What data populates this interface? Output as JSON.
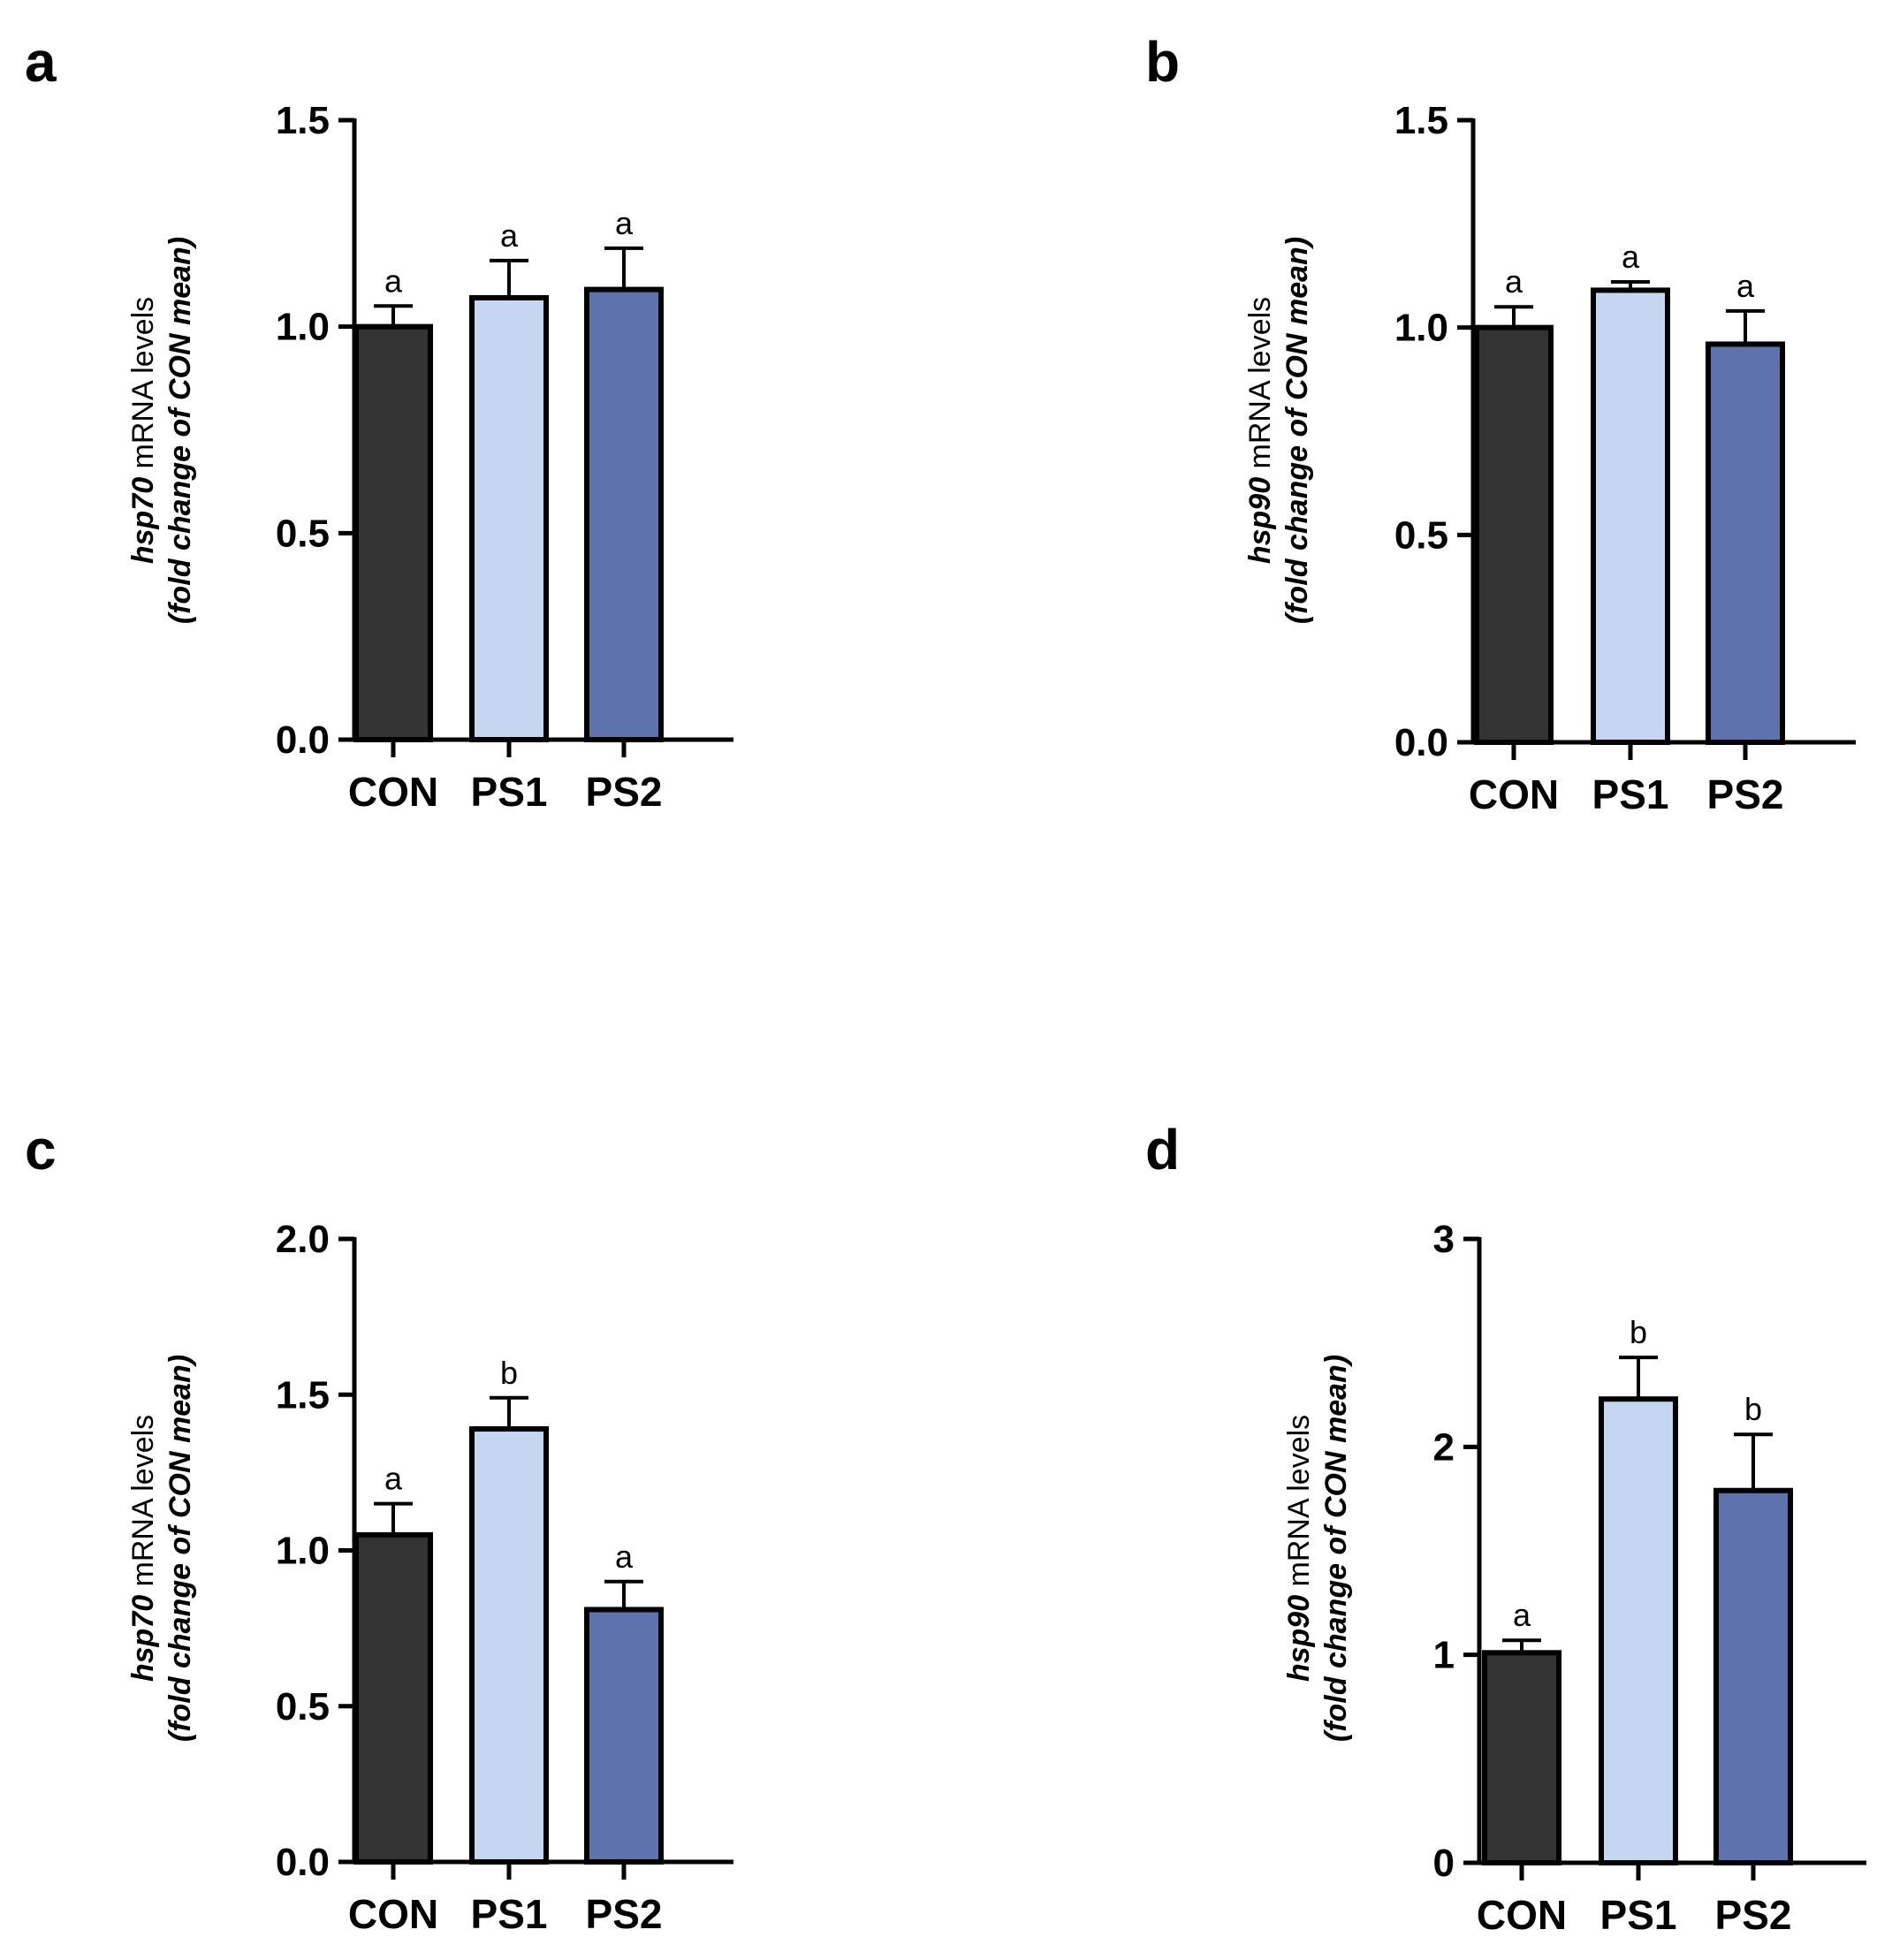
{
  "colors": {
    "CON": "#333333",
    "PS1": "#c5d6f0",
    "PS2": "#5e73ae",
    "stroke": "#000000"
  },
  "chart_data": [
    {
      "panel": "a",
      "type": "bar",
      "categories": [
        "CON",
        "PS1",
        "PS2"
      ],
      "values": [
        1.0,
        1.07,
        1.09
      ],
      "errors": [
        0.05,
        0.09,
        0.1
      ],
      "significance": [
        "a",
        "a",
        "a"
      ],
      "ylim": [
        0,
        1.5
      ],
      "yticks": [
        "0.0",
        "0.5",
        "1.0",
        "1.5"
      ],
      "yticks_values": [
        0,
        0.5,
        1.0,
        1.5
      ],
      "ylabel_gene": "hsp70",
      "ylabel_rest": " mRNA levels",
      "ylabel_line2": "(fold change of CON mean)"
    },
    {
      "panel": "b",
      "type": "bar",
      "categories": [
        "CON",
        "PS1",
        "PS2"
      ],
      "values": [
        1.0,
        1.09,
        0.96
      ],
      "errors": [
        0.05,
        0.02,
        0.08
      ],
      "significance": [
        "a",
        "a",
        "a"
      ],
      "ylim": [
        0,
        1.5
      ],
      "yticks": [
        "0.0",
        "0.5",
        "1.0",
        "1.5"
      ],
      "yticks_values": [
        0,
        0.5,
        1.0,
        1.5
      ],
      "ylabel_gene": "hsp90",
      "ylabel_rest": " mRNA levels",
      "ylabel_line2": "(fold change of CON mean)"
    },
    {
      "panel": "c",
      "type": "bar",
      "categories": [
        "CON",
        "PS1",
        "PS2"
      ],
      "values": [
        1.05,
        1.39,
        0.81
      ],
      "errors": [
        0.1,
        0.1,
        0.09
      ],
      "significance": [
        "a",
        "b",
        "a"
      ],
      "ylim": [
        0,
        2.0
      ],
      "yticks": [
        "0.0",
        "0.5",
        "1.0",
        "1.5",
        "2.0"
      ],
      "yticks_values": [
        0,
        0.5,
        1.0,
        1.5,
        2.0
      ],
      "ylabel_gene": "hsp70",
      "ylabel_rest": " mRNA levels",
      "ylabel_line2": "(fold change of CON mean)"
    },
    {
      "panel": "d",
      "type": "bar",
      "categories": [
        "CON",
        "PS1",
        "PS2"
      ],
      "values": [
        1.01,
        2.23,
        1.79
      ],
      "errors": [
        0.06,
        0.2,
        0.27
      ],
      "significance": [
        "a",
        "b",
        "b"
      ],
      "ylim": [
        0,
        3
      ],
      "yticks": [
        "0",
        "1",
        "2",
        "3"
      ],
      "yticks_values": [
        0,
        1,
        2,
        3
      ],
      "ylabel_gene": "hsp90",
      "ylabel_rest": " mRNA levels",
      "ylabel_line2": "(fold change of CON mean)"
    }
  ]
}
